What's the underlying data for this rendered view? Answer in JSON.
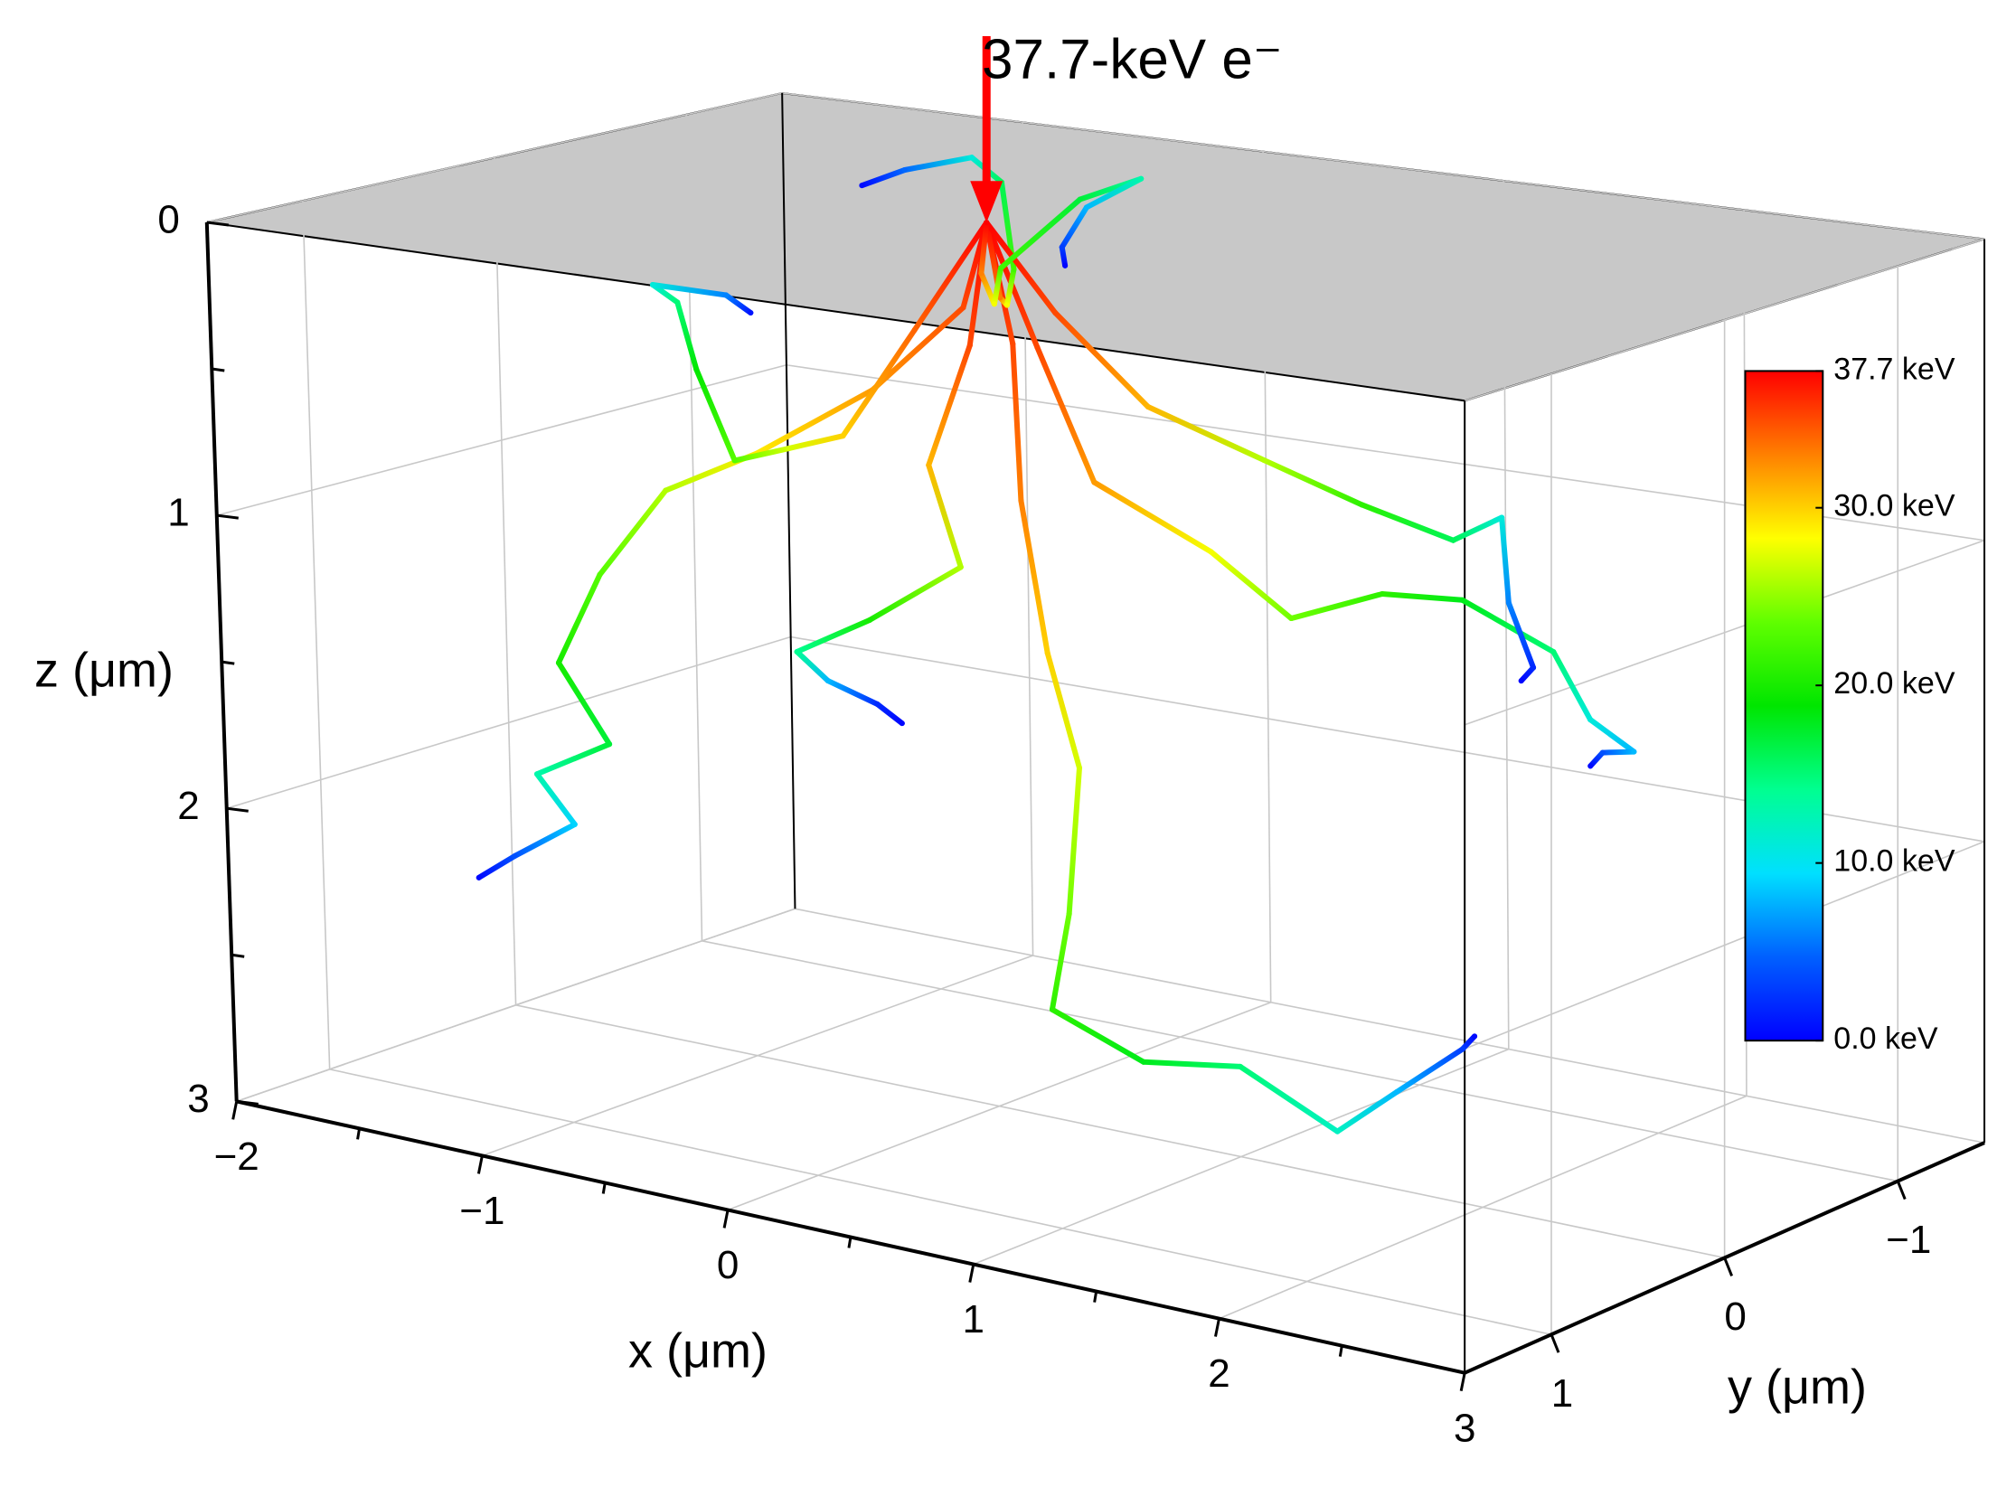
{
  "chart_data": {
    "type": "line3d",
    "annotation": "37.7-keV e⁻",
    "xlabel": "x (μm)",
    "ylabel": "y (μm)",
    "zlabel": "z (μm)",
    "xlim": [
      -2,
      3
    ],
    "ylim": [
      -1.5,
      1.5
    ],
    "zlim": [
      0,
      3
    ],
    "z_reversed": true,
    "xticks": [
      {
        "value": -2,
        "label": "−2"
      },
      {
        "value": -1,
        "label": "−1"
      },
      0,
      1,
      2,
      3
    ],
    "yticks": [
      {
        "value": -1,
        "label": "−1"
      },
      0,
      {
        "value": 1,
        "label": "1"
      }
    ],
    "zticks": [
      0,
      1,
      2,
      3
    ],
    "grid": true,
    "top_plane_color": "#c8c8c8",
    "colorbar": {
      "clim": [
        0,
        37.7
      ],
      "ticks": [
        {
          "value": 37.7,
          "label": "37.7 keV"
        },
        {
          "value": 30,
          "label": "30.0 keV"
        },
        {
          "value": 20,
          "label": "20.0 keV"
        },
        {
          "value": 10,
          "label": "10.0 keV"
        },
        {
          "value": 0,
          "label": "0.0 keV"
        }
      ],
      "colormap": [
        "#0000ff",
        "#0060ff",
        "#00e0ff",
        "#00ff90",
        "#00e600",
        "#60ff00",
        "#ffff00",
        "#ff8000",
        "#ff0000"
      ]
    },
    "series": [
      {
        "x": [
          0,
          0.1,
          0.2,
          0.3,
          0.35,
          0.3,
          0.3,
          0.6,
          1.0,
          1.4,
          1.5,
          1.7,
          1.75
        ],
        "y": [
          0,
          0,
          0.1,
          0.1,
          0,
          0,
          0.1,
          0,
          0,
          0,
          -0.2,
          -0.3,
          -0.3
        ],
        "z": [
          0,
          0.4,
          0.9,
          1.4,
          1.8,
          2.3,
          2.6,
          2.75,
          2.7,
          2.85,
          2.75,
          2.6,
          2.55
        ],
        "energy": [
          37.7,
          35,
          33,
          30,
          27,
          24,
          21,
          18,
          15,
          12,
          8,
          3,
          0.5
        ]
      },
      {
        "x": [
          0,
          0.2,
          0.5,
          0.9,
          1.3,
          1.6,
          2.0,
          2.3,
          2.45,
          2.7,
          2.5,
          2.45
        ],
        "y": [
          0,
          0,
          0.1,
          0,
          0.1,
          0,
          0.1,
          0,
          0,
          0.1,
          0,
          0
        ],
        "z": [
          0,
          0.4,
          0.8,
          1.0,
          1.15,
          1.05,
          1.0,
          1.15,
          1.35,
          1.4,
          1.45,
          1.5
        ],
        "energy": [
          37.7,
          35,
          32,
          28,
          24,
          21,
          18,
          15,
          11,
          8,
          4,
          0.5
        ]
      },
      {
        "x": [
          0,
          -0.1,
          -0.4,
          -0.8,
          -1.1,
          -1.3,
          -1.4,
          -1.2,
          -1.5,
          -1.35,
          -1.6,
          -1.75
        ],
        "y": [
          0,
          0,
          0.1,
          0.2,
          0.3,
          0.4,
          0.5,
          0.5,
          0.5,
          0.5,
          0.5,
          0.5
        ],
        "z": [
          0,
          0.3,
          0.6,
          0.85,
          1.0,
          1.3,
          1.6,
          1.85,
          2.0,
          2.15,
          2.3,
          2.4
        ],
        "energy": [
          37.7,
          35,
          32,
          29,
          26,
          23,
          20,
          17,
          13,
          9,
          4,
          0.5
        ]
      },
      {
        "x": [
          0,
          -0.3,
          -0.6,
          -0.9,
          -1.2,
          -1.35,
          -1.5,
          -1.6,
          -1.3,
          -1.2
        ],
        "y": [
          0,
          0,
          0,
          -0.1,
          -0.2,
          -0.2,
          -0.3,
          -0.3,
          -0.3,
          -0.3
        ],
        "z": [
          0,
          0.4,
          0.8,
          0.9,
          1.0,
          0.7,
          0.5,
          0.45,
          0.45,
          0.5
        ],
        "energy": [
          37.7,
          34,
          30,
          27,
          23,
          19,
          15,
          11,
          6,
          1
        ]
      },
      {
        "x": [
          0,
          -0.1,
          -0.3,
          -0.5,
          -0.7,
          -0.9,
          -1.1,
          -1.2
        ],
        "y": [
          0,
          -0.2,
          -0.5,
          -0.8,
          -1.0,
          -1.1,
          -1.0,
          -0.9
        ],
        "z": [
          0,
          0.3,
          0.4,
          0.35,
          0.1,
          0.05,
          0.1,
          0.15
        ],
        "energy": [
          37.7,
          33,
          28,
          22,
          16,
          11,
          5,
          0.5
        ]
      },
      {
        "x": [
          0,
          0.2,
          0.5,
          0.9,
          1.3,
          1.6,
          1.8,
          1.9,
          2.0,
          1.95
        ],
        "y": [
          0,
          -0.1,
          -0.2,
          -0.3,
          -0.3,
          -0.4,
          -0.4,
          -0.3,
          -0.3,
          -0.3
        ],
        "z": [
          0,
          0.3,
          0.6,
          0.75,
          0.85,
          0.95,
          0.85,
          1.1,
          1.3,
          1.35
        ],
        "energy": [
          37.7,
          35,
          31,
          26,
          21,
          16,
          11,
          6,
          2,
          0.3
        ]
      },
      {
        "x": [
          0,
          0,
          -0.1,
          0.1,
          -0.2,
          -0.5,
          -0.3,
          -0.1,
          0
        ],
        "y": [
          0,
          0.1,
          0.2,
          0.3,
          0.4,
          0.4,
          0.5,
          0.5,
          0.5
        ],
        "z": [
          0,
          0.4,
          0.8,
          1.1,
          1.3,
          1.45,
          1.5,
          1.55,
          1.6
        ],
        "energy": [
          37.7,
          35,
          31,
          26,
          20,
          14,
          8,
          2,
          0.3
        ]
      },
      {
        "x": [
          0,
          -0.1,
          -0.2,
          -0.4,
          -0.3,
          -0.2,
          -0.35,
          -0.3,
          -0.25
        ],
        "y": [
          0,
          -0.1,
          -0.3,
          -0.6,
          -0.9,
          -1.1,
          -1.0,
          -0.8,
          -0.75
        ],
        "z": [
          0,
          0.2,
          0.35,
          0.3,
          0.1,
          0.05,
          0.15,
          0.25,
          0.3
        ],
        "energy": [
          37.7,
          33,
          28,
          22,
          17,
          13,
          8,
          3,
          0.3
        ]
      }
    ]
  }
}
